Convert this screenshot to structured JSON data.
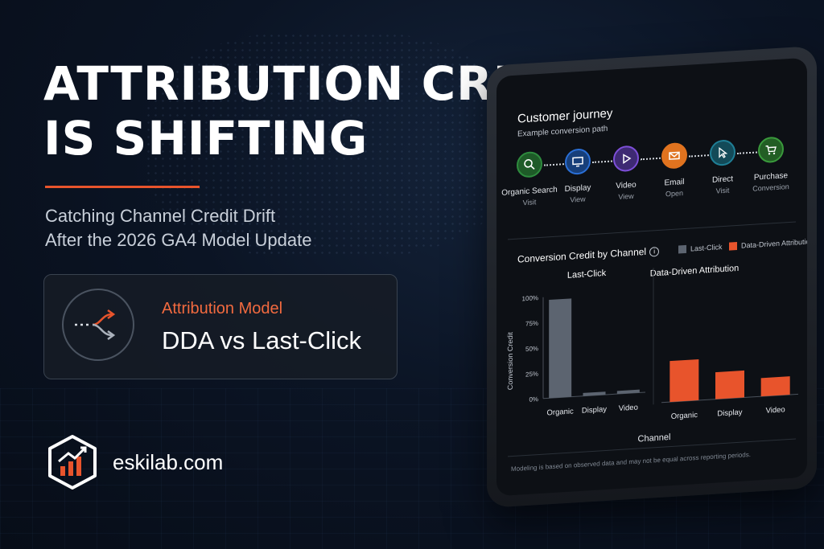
{
  "headline": {
    "line1": "ATTRIBUTION CREDIT",
    "line2": "IS SHIFTING"
  },
  "subtitle": {
    "line1": "Catching Channel Credit Drift",
    "line2": "After the 2026 GA4 Model Update"
  },
  "model_card": {
    "label": "Attribution Model",
    "value": "DDA vs Last-Click",
    "icon": "split-arrow-icon"
  },
  "brand": {
    "name": "eskilab.com",
    "icon": "hexagon-bar-chart-logo"
  },
  "colors": {
    "accent": "#e8542c",
    "last_click": "#5c6470",
    "dda": "#e8542c"
  },
  "journey": {
    "title": "Customer journey",
    "subtitle": "Example conversion path",
    "steps": [
      {
        "label": "Organic Search",
        "sub": "Visit",
        "icon": "search-icon",
        "color": "#2e8b3e"
      },
      {
        "label": "Display",
        "sub": "View",
        "icon": "monitor-icon",
        "color": "#2a6fd6"
      },
      {
        "label": "Video",
        "sub": "View",
        "icon": "play-icon",
        "color": "#7d4fd8"
      },
      {
        "label": "Email",
        "sub": "Open",
        "icon": "envelope-icon",
        "color": "#e0731f"
      },
      {
        "label": "Direct",
        "sub": "Visit",
        "icon": "cursor-icon",
        "color": "#1f7e95"
      },
      {
        "label": "Purchase",
        "sub": "Conversion",
        "icon": "cart-icon",
        "color": "#3a9a3c"
      }
    ]
  },
  "chart": {
    "title": "Conversion Credit by Channel",
    "info_icon": "info-icon",
    "legend": [
      "Last-Click",
      "Data-Driven Attribution"
    ]
  },
  "chart_data": [
    {
      "type": "bar",
      "title": "Last-Click",
      "categories": [
        "Organic",
        "Display",
        "Video"
      ],
      "values": [
        97,
        3,
        3
      ],
      "ylabel": "Conversion Credit",
      "yticks": [
        "100%",
        "75%",
        "50%",
        "25%",
        "0%"
      ],
      "ylim": [
        0,
        100
      ],
      "xlabel": "Channel"
    },
    {
      "type": "bar",
      "title": "Data-Driven Attribution",
      "categories": [
        "Organic",
        "Display",
        "Video"
      ],
      "values": [
        38,
        25,
        17
      ],
      "ylim": [
        0,
        100
      ],
      "xlabel": "Channel"
    }
  ],
  "footnote": "Modeling is based on observed data and may not be equal across reporting periods."
}
